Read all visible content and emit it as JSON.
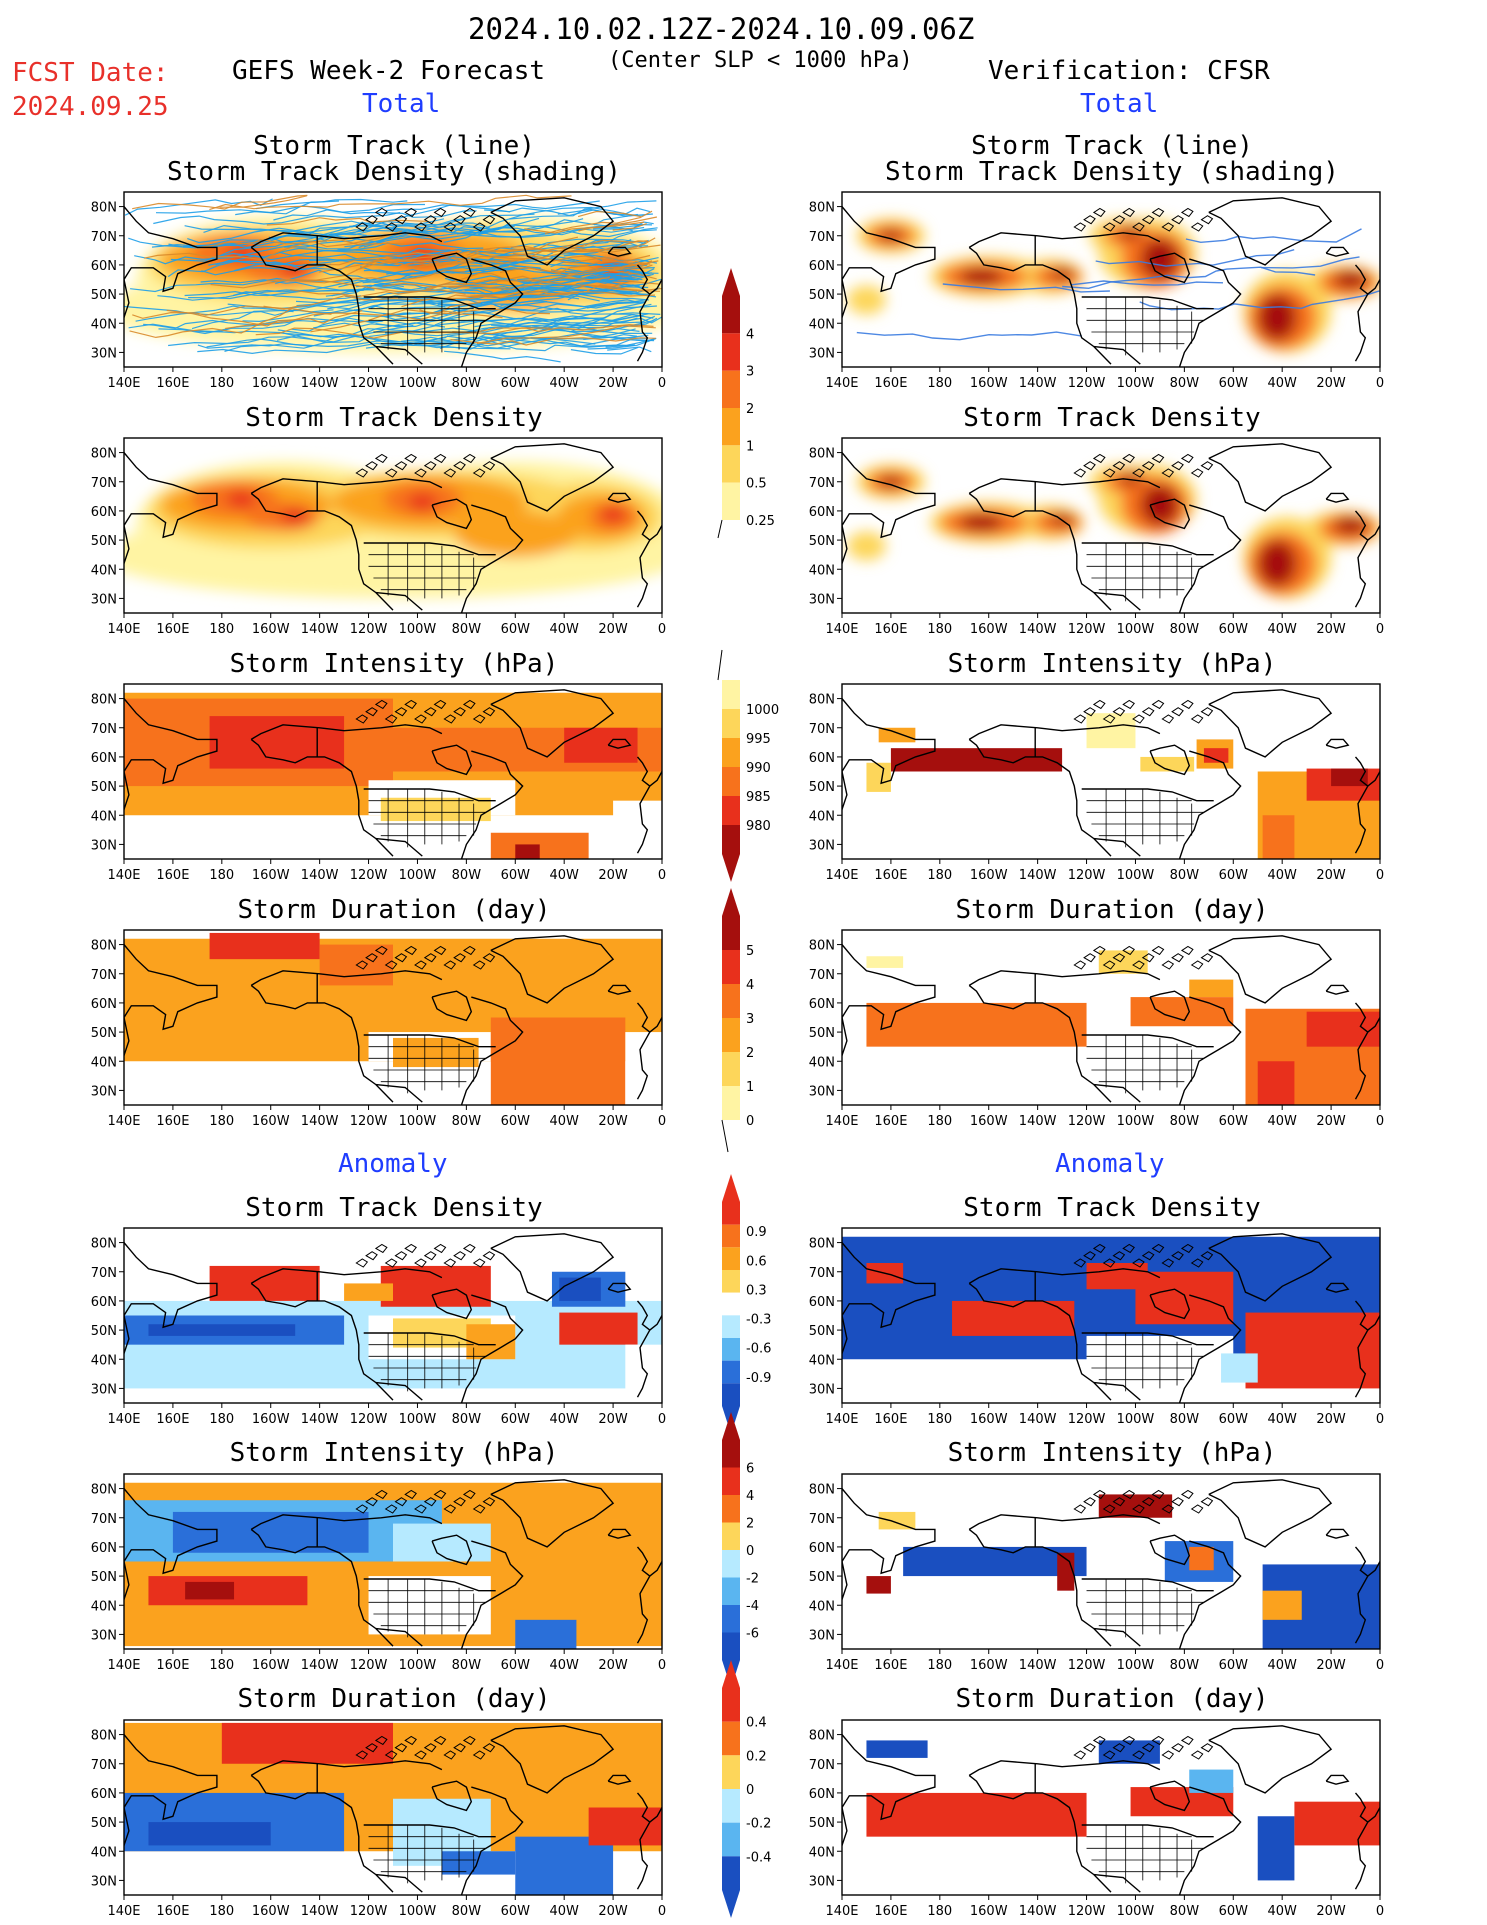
{
  "header": {
    "date_range": "2024.10.02.12Z-2024.10.09.06Z",
    "criterion": "(Center SLP < 1000 hPa)",
    "fcst_label": "FCST Date:",
    "fcst_date": "2024.09.25",
    "left_title": "GEFS Week-2 Forecast",
    "right_title": "Verification: CFSR",
    "total_label_left": "Total",
    "total_label_right": "Total",
    "anomaly_label_left": "Anomaly",
    "anomaly_label_right": "Anomaly"
  },
  "axes": {
    "lon_ticks": [
      "140E",
      "160E",
      "180",
      "160W",
      "140W",
      "120W",
      "100W",
      "80W",
      "60W",
      "40W",
      "20W",
      "0"
    ],
    "lat_ticks": [
      "80N",
      "70N",
      "60N",
      "50N",
      "40N",
      "30N"
    ]
  },
  "panels": [
    {
      "id": "track-line-fcst",
      "title1": "Storm Track (line)",
      "title2": "Storm Track Density (shading)"
    },
    {
      "id": "track-line-ver",
      "title1": "Storm Track (line)",
      "title2": "Storm Track Density (shading)"
    },
    {
      "id": "density-fcst",
      "title1": "Storm Track Density"
    },
    {
      "id": "density-ver",
      "title1": "Storm Track Density"
    },
    {
      "id": "intensity-fcst",
      "title1": "Storm Intensity (hPa)"
    },
    {
      "id": "intensity-ver",
      "title1": "Storm Intensity (hPa)"
    },
    {
      "id": "duration-fcst",
      "title1": "Storm Duration (day)"
    },
    {
      "id": "duration-ver",
      "title1": "Storm Duration (day)"
    },
    {
      "id": "anom-density-fcst",
      "title1": "Storm Track Density"
    },
    {
      "id": "anom-density-ver",
      "title1": "Storm Track Density"
    },
    {
      "id": "anom-intensity-fcst",
      "title1": "Storm Intensity (hPa)"
    },
    {
      "id": "anom-intensity-ver",
      "title1": "Storm Intensity (hPa)"
    },
    {
      "id": "anom-duration-fcst",
      "title1": "Storm Duration (day)"
    },
    {
      "id": "anom-duration-ver",
      "title1": "Storm Duration (day)"
    }
  ],
  "colorbars": {
    "density": {
      "labels": [
        "4",
        "3",
        "2",
        "1",
        "0.5",
        "0.25"
      ],
      "colors": [
        "#a50f0d",
        "#e8301c",
        "#f7721c",
        "#fba21e",
        "#fdd65a",
        "#fff4a3"
      ]
    },
    "intensity": {
      "labels": [
        "1000",
        "995",
        "990",
        "985",
        "980"
      ],
      "colors": [
        "#fff4a3",
        "#fdd65a",
        "#fba21e",
        "#f7721c",
        "#e8301c",
        "#a50f0d"
      ]
    },
    "duration": {
      "labels": [
        "5",
        "4",
        "3",
        "2",
        "1",
        "0"
      ],
      "colors": [
        "#a50f0d",
        "#e8301c",
        "#f7721c",
        "#fba21e",
        "#fdd65a",
        "#fff4a3"
      ]
    },
    "anom_density": {
      "labels": [
        "0.9",
        "0.6",
        "0.3",
        "-0.3",
        "-0.6",
        "-0.9"
      ],
      "colors": [
        "#e8301c",
        "#f7721c",
        "#fba21e",
        "#fdd65a",
        "#ffffff",
        "#b6eaff",
        "#5ab5f0",
        "#2a6fd9",
        "#1a4fc0"
      ]
    },
    "anom_intensity": {
      "labels": [
        "6",
        "4",
        "2",
        "0",
        "-2",
        "-4",
        "-6"
      ],
      "colors": [
        "#a50f0d",
        "#e8301c",
        "#f7721c",
        "#fdd65a",
        "#b6eaff",
        "#5ab5f0",
        "#2a6fd9",
        "#1a4fc0"
      ]
    },
    "anom_duration": {
      "labels": [
        "0.4",
        "0.2",
        "0",
        "-0.2",
        "-0.4"
      ],
      "colors": [
        "#e8301c",
        "#f7721c",
        "#fdd65a",
        "#b6eaff",
        "#5ab5f0",
        "#1a4fc0"
      ]
    }
  }
}
